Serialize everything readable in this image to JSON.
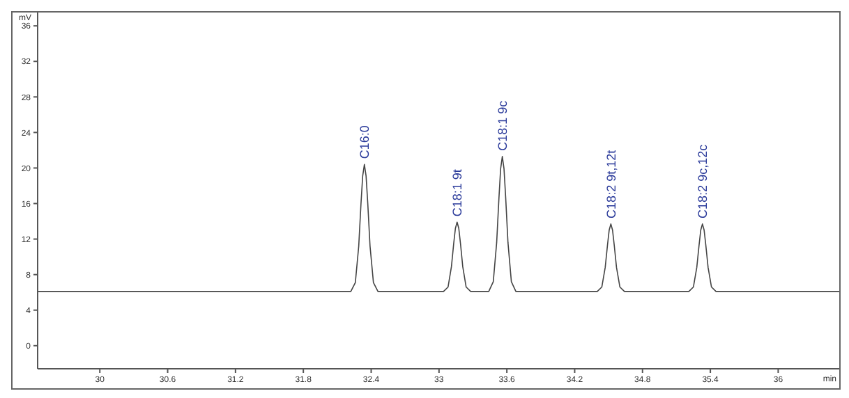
{
  "chart_data": {
    "type": "line",
    "xlabel": "min",
    "ylabel": "mV",
    "x": [
      29.45,
      32.22,
      32.26,
      32.29,
      32.31,
      32.325,
      32.34,
      32.355,
      32.37,
      32.39,
      32.42,
      32.46,
      33.04,
      33.08,
      33.11,
      33.13,
      33.145,
      33.16,
      33.175,
      33.19,
      33.21,
      33.24,
      33.28,
      33.44,
      33.48,
      33.51,
      33.53,
      33.545,
      33.56,
      33.575,
      33.59,
      33.61,
      33.64,
      33.68,
      34.4,
      34.44,
      34.47,
      34.49,
      34.505,
      34.52,
      34.535,
      34.55,
      34.57,
      34.6,
      34.64,
      35.21,
      35.25,
      35.28,
      35.3,
      35.315,
      35.33,
      35.345,
      35.36,
      35.38,
      35.41,
      35.45,
      36.54
    ],
    "series": [
      {
        "color": "#444444",
        "values": [
          6.1,
          6.1,
          7.1,
          11.2,
          16.0,
          19.1,
          20.4,
          19.1,
          16.0,
          11.2,
          7.1,
          6.1,
          6.1,
          6.6,
          8.9,
          11.5,
          13.2,
          13.9,
          13.2,
          11.5,
          8.9,
          6.6,
          6.1,
          6.1,
          7.2,
          11.6,
          16.6,
          19.9,
          21.3,
          19.9,
          16.6,
          11.6,
          7.2,
          6.1,
          6.1,
          6.6,
          8.8,
          11.3,
          13.0,
          13.7,
          13.0,
          11.3,
          8.8,
          6.6,
          6.1,
          6.1,
          6.6,
          8.8,
          11.3,
          13.0,
          13.7,
          13.0,
          11.3,
          8.8,
          6.6,
          6.1,
          6.1
        ]
      }
    ],
    "xlim": [
      29.45,
      36.54
    ],
    "xticks": [
      30,
      30.6,
      31.2,
      31.8,
      32.4,
      33,
      33.6,
      34.2,
      34.8,
      35.4,
      36
    ],
    "ylim": [
      -2.6,
      37.5
    ],
    "yticks": [
      0,
      4,
      8,
      12,
      16,
      20,
      24,
      28,
      32,
      36
    ],
    "annotations": [
      {
        "text": "C16:0",
        "x": 32.34,
        "y": 20.4
      },
      {
        "text": "C18:1 9t",
        "x": 33.16,
        "y": 13.9
      },
      {
        "text": "C18:1 9c",
        "x": 33.56,
        "y": 21.3
      },
      {
        "text": "C18:2 9t,12t",
        "x": 34.52,
        "y": 13.7
      },
      {
        "text": "C18:2 9c,12c",
        "x": 35.33,
        "y": 13.7
      }
    ],
    "grid": false,
    "legend": false,
    "marker": "none",
    "line_style": "solid"
  }
}
